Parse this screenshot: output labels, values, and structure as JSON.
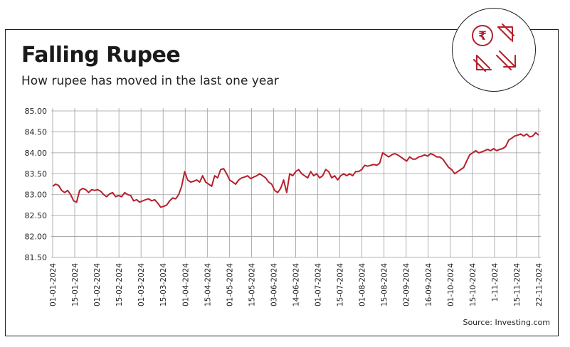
{
  "header": {
    "title": "Falling Rupee",
    "subtitle": "How rupee has moved in the last one year"
  },
  "footer": {
    "source": "Source: Investing.com"
  },
  "logo": {
    "icon": "rupee-exchange-icon",
    "color": "#b5202c"
  },
  "colors": {
    "line": "#b5202c",
    "grid": "#9e9e9e",
    "text": "#222222"
  },
  "chart_data": {
    "type": "line",
    "title": "Falling Rupee",
    "subtitle": "How rupee has moved in the last one year",
    "xlabel": "",
    "ylabel": "",
    "ylim": [
      81.5,
      85.0
    ],
    "yticks": [
      "85.00",
      "84.50",
      "84.00",
      "83.50",
      "83.00",
      "82.50",
      "82.00",
      "81.50"
    ],
    "xticks": [
      "01-01-2024",
      "15-01-2024",
      "01-02-2024",
      "15-02-2024",
      "01-03-2024",
      "15-03-2024",
      "01-04-2024",
      "15-04-2024",
      "01-05-2024",
      "15-05-2024",
      "03-06-2024",
      "14-06-2024",
      "01-07-2024",
      "15-07-2024",
      "01-08-2024",
      "15-08-2024",
      "02-09-2024",
      "16-09-2024",
      "01-10-2024",
      "15-10-2024",
      "1-11-2024",
      "15-11-2024",
      "22-11-2024"
    ],
    "grid": true,
    "legend": "none",
    "series": [
      {
        "values": [
          83.2,
          83.25,
          83.22,
          83.1,
          83.05,
          83.1,
          83.0,
          82.85,
          82.82,
          83.1,
          83.15,
          83.12,
          83.05,
          83.12,
          83.1,
          83.12,
          83.08,
          83.0,
          82.95,
          83.02,
          83.05,
          82.95,
          82.98,
          82.95,
          83.05,
          83.0,
          82.98,
          82.85,
          82.88,
          82.82,
          82.85,
          82.88,
          82.9,
          82.85,
          82.88,
          82.8,
          82.7,
          82.72,
          82.75,
          82.85,
          82.92,
          82.9,
          83.0,
          83.2,
          83.55,
          83.35,
          83.3,
          83.32,
          83.35,
          83.3,
          83.45,
          83.3,
          83.25,
          83.2,
          83.45,
          83.4,
          83.6,
          83.62,
          83.5,
          83.35,
          83.3,
          83.25,
          83.35,
          83.4,
          83.42,
          83.45,
          83.38,
          83.42,
          83.45,
          83.5,
          83.45,
          83.4,
          83.3,
          83.25,
          83.1,
          83.05,
          83.15,
          83.35,
          83.05,
          83.5,
          83.45,
          83.55,
          83.6,
          83.5,
          83.45,
          83.4,
          83.55,
          83.45,
          83.5,
          83.4,
          83.45,
          83.6,
          83.55,
          83.4,
          83.45,
          83.35,
          83.45,
          83.5,
          83.45,
          83.5,
          83.45,
          83.55,
          83.55,
          83.6,
          83.7,
          83.68,
          83.7,
          83.72,
          83.7,
          83.75,
          84.0,
          83.95,
          83.9,
          83.95,
          83.98,
          83.95,
          83.9,
          83.85,
          83.8,
          83.9,
          83.85,
          83.85,
          83.9,
          83.92,
          83.95,
          83.92,
          83.98,
          83.95,
          83.9,
          83.9,
          83.85,
          83.75,
          83.65,
          83.6,
          83.5,
          83.55,
          83.6,
          83.65,
          83.8,
          83.95,
          84.0,
          84.05,
          84.0,
          84.02,
          84.05,
          84.08,
          84.05,
          84.1,
          84.05,
          84.08,
          84.1,
          84.15,
          84.3,
          84.35,
          84.4,
          84.42,
          84.45,
          84.4,
          84.45,
          84.38,
          84.4,
          84.48,
          84.42
        ]
      }
    ]
  }
}
